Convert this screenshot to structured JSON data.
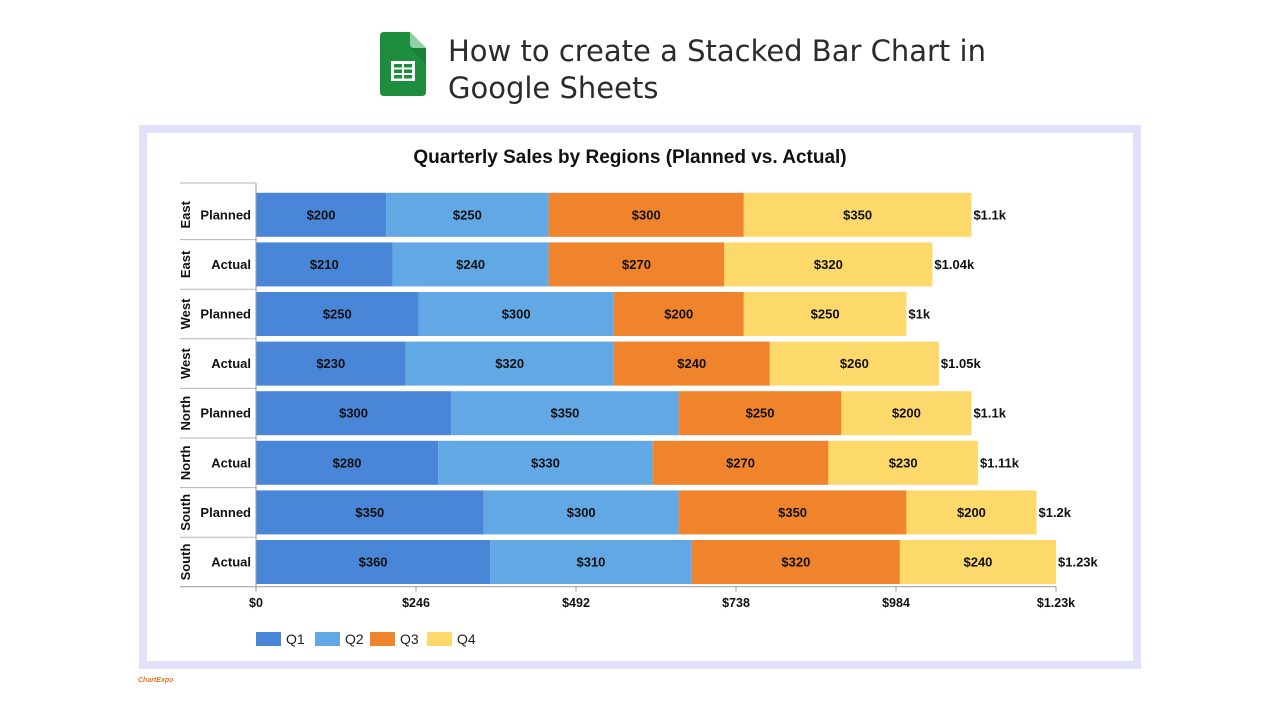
{
  "page": {
    "title": "How to create a Stacked Bar Chart in Google Sheets",
    "footer_brand": "ChartExpo"
  },
  "icons": {
    "header": "google-sheets-icon",
    "footer": "chartexpo-logo-icon"
  },
  "colors": {
    "frame": "#e1e1fb",
    "sheets_green": "#1e8e3e"
  },
  "chart_data": {
    "type": "bar",
    "orientation": "horizontal",
    "stacked": true,
    "title": "Quarterly Sales by Regions (Planned vs. Actual)",
    "rows": [
      {
        "region": "East",
        "label": "Planned",
        "values": [
          200,
          250,
          300,
          350
        ],
        "total_label": "$1.1k"
      },
      {
        "region": "East",
        "label": "Actual",
        "values": [
          210,
          240,
          270,
          320
        ],
        "total_label": "$1.04k"
      },
      {
        "region": "West",
        "label": "Planned",
        "values": [
          250,
          300,
          200,
          250
        ],
        "total_label": "$1k"
      },
      {
        "region": "West",
        "label": "Actual",
        "values": [
          230,
          320,
          240,
          260
        ],
        "total_label": "$1.05k"
      },
      {
        "region": "North",
        "label": "Planned",
        "values": [
          300,
          350,
          250,
          200
        ],
        "total_label": "$1.1k"
      },
      {
        "region": "North",
        "label": "Actual",
        "values": [
          280,
          330,
          270,
          230
        ],
        "total_label": "$1.11k"
      },
      {
        "region": "South",
        "label": "Planned",
        "values": [
          350,
          300,
          350,
          200
        ],
        "total_label": "$1.2k"
      },
      {
        "region": "South",
        "label": "Actual",
        "values": [
          360,
          310,
          320,
          240
        ],
        "total_label": "$1.23k"
      }
    ],
    "series": [
      {
        "name": "Q1",
        "color": "#4a86d8"
      },
      {
        "name": "Q2",
        "color": "#62a8e5"
      },
      {
        "name": "Q3",
        "color": "#f0842c"
      },
      {
        "name": "Q4",
        "color": "#fdd96b"
      }
    ],
    "xlim": [
      0,
      1230
    ],
    "x_ticks": [
      {
        "value": 0,
        "label": "$0"
      },
      {
        "value": 246,
        "label": "$246"
      },
      {
        "value": 492,
        "label": "$492"
      },
      {
        "value": 738,
        "label": "$738"
      },
      {
        "value": 984,
        "label": "$984"
      },
      {
        "value": 1230,
        "label": "$1.23k"
      }
    ],
    "legend_position": "bottom-left",
    "grid": false
  }
}
